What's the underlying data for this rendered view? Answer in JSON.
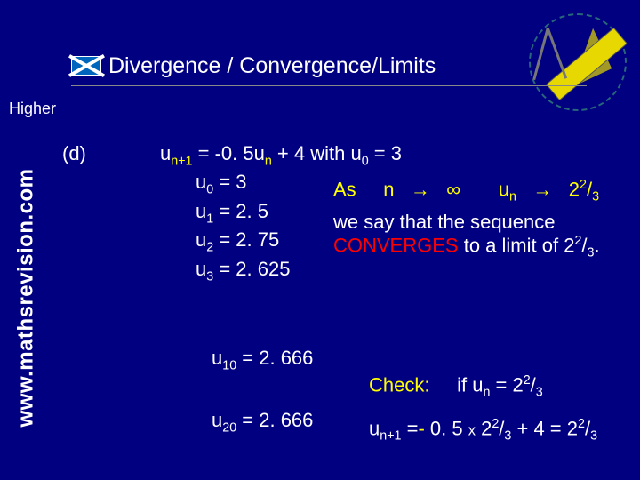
{
  "colors": {
    "background": "#000080",
    "text": "#ffffff",
    "highlight": "#ffff00",
    "accent": "#ff0000"
  },
  "fonts": {
    "family": "Comic Sans MS",
    "title_size_pt": 25,
    "body_size_pt": 22,
    "sidebar_size_pt": 24,
    "higher_size_pt": 18
  },
  "title": "Divergence / Convergence/Limits",
  "level": "Higher",
  "sidebar": "www.mathsrevision.com",
  "part_label": "(d)",
  "formula_prefix": "u",
  "formula_sub1": "n+1",
  "formula_mid": " = -0. 5u",
  "formula_sub2": "n",
  "formula_tail": " + 4  with u",
  "formula_sub3": "0",
  "formula_end": " = 3",
  "seq": {
    "u0_l": "u",
    "u0_s": "0",
    "u0_r": " = 3",
    "u1_l": "u",
    "u1_s": "1",
    "u1_r": " = 2. 5",
    "u2_l": "u",
    "u2_s": "2",
    "u2_r": " = 2. 75",
    "u3_l": "u",
    "u3_s": "3",
    "u3_r": " = 2. 625",
    "u10_l": "u",
    "u10_s": "10",
    "u10_r": " = 2. 666",
    "u20_l": "u",
    "u20_s": "20",
    "u20_r": " = 2. 666"
  },
  "limit": {
    "as": "As",
    "n": "n",
    "arrow": "→",
    "inf": "∞",
    "un_l": "u",
    "un_s": "n",
    "arrow2": "→",
    "val_int": "2",
    "val_num": "2",
    "val_slash": "/",
    "val_den": "3"
  },
  "converge": {
    "line1": "we say that the sequence",
    "line2a": "CONVERGES",
    "line2b": "  to a limit of ",
    "lim_int": "2",
    "lim_num": "2",
    "lim_slash": "/",
    "lim_den": "3",
    "dot": "."
  },
  "check": {
    "label": "Check:",
    "if": "if u",
    "if_s": "n",
    "if_eq": " = 2",
    "if_num": "2",
    "if_slash": "/",
    "if_den": "3",
    "c2_l": "u",
    "c2_s": "n+1",
    "c2_a": " =",
    "c2_neg": "-",
    "c2_b": " 0. 5 ",
    "c2_x": "x",
    "c2_c": " 2",
    "c2_num": "2",
    "c2_slash": "/",
    "c2_den": "3",
    "c2_d": " + 4 = 2",
    "c2_num2": "2",
    "c2_slash2": "/",
    "c2_den2": "3"
  }
}
